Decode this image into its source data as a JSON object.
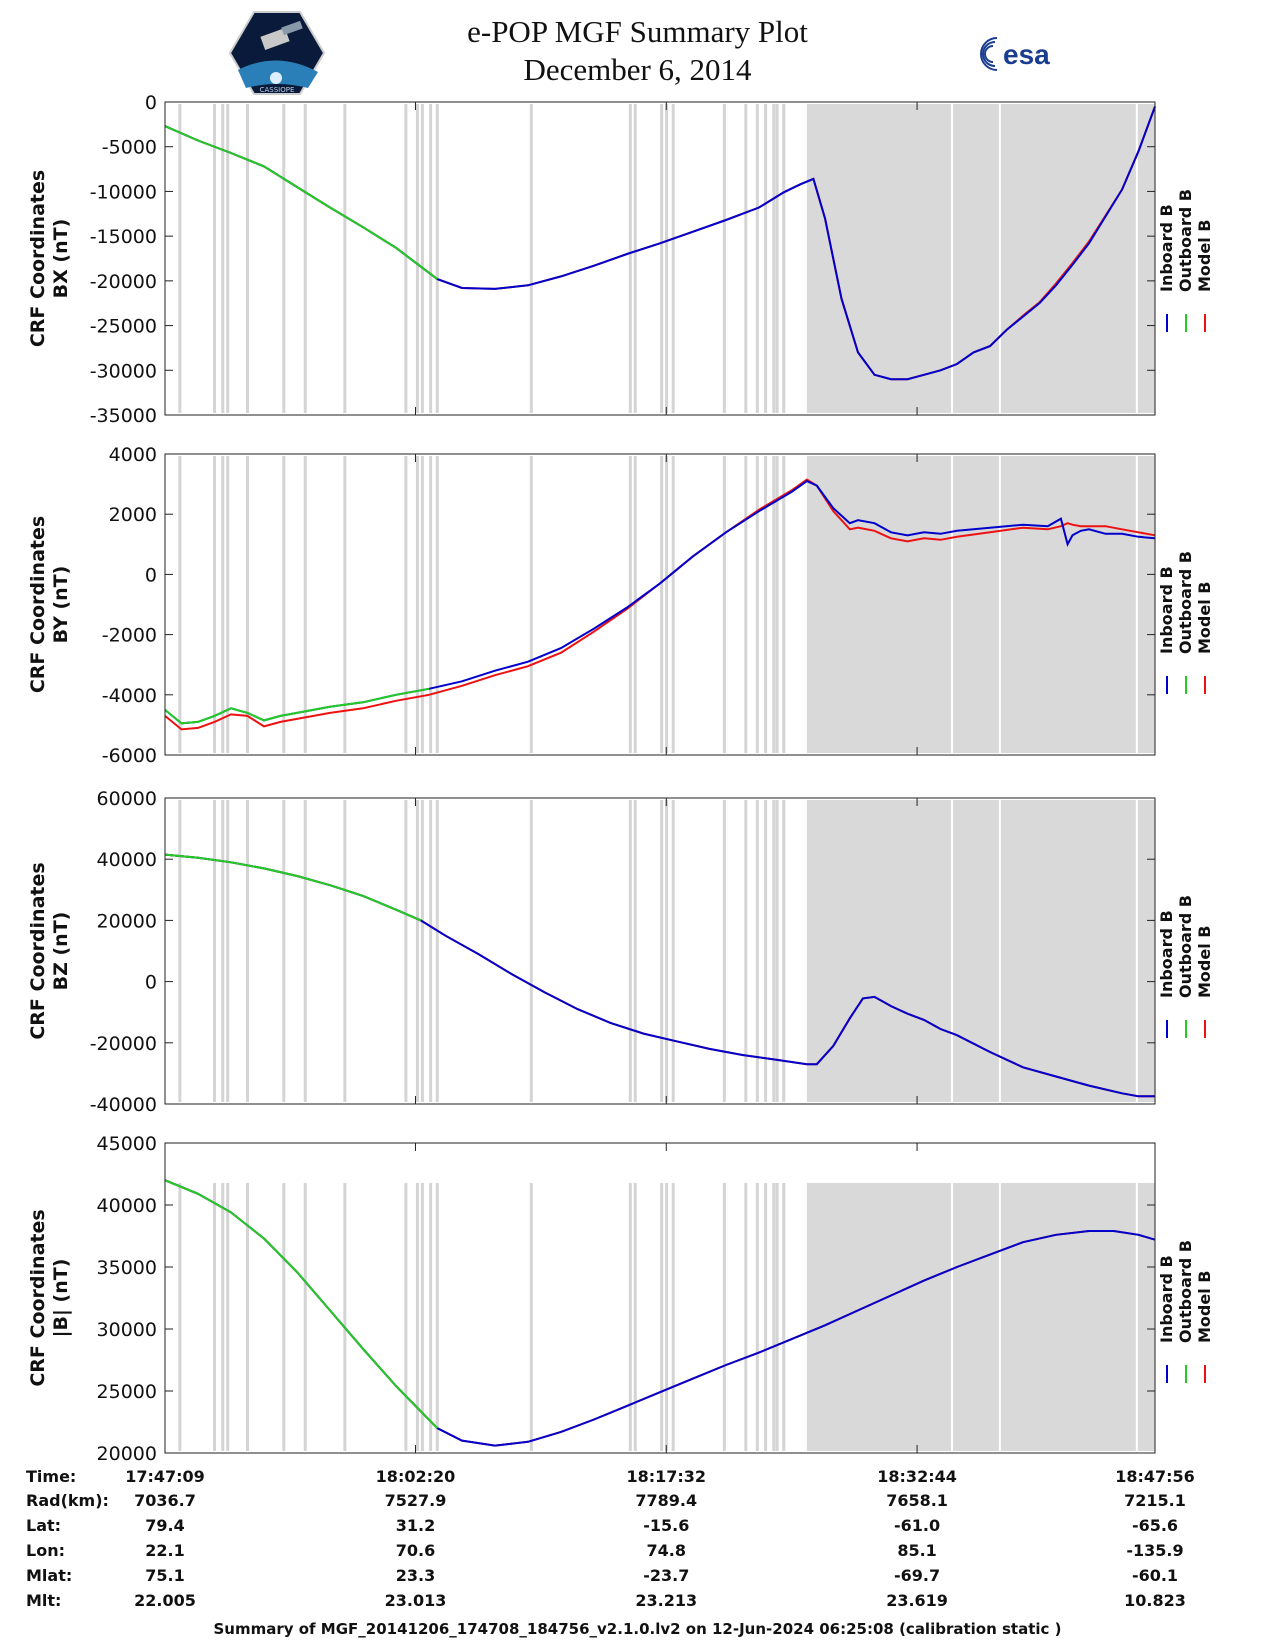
{
  "header": {
    "title_line1": "e-POP MGF Summary Plot",
    "title_line2": "December 6, 2014",
    "mission_logo_text": "CASSIOPE",
    "esa_logo_text": "esa"
  },
  "footer": {
    "text": "Summary of MGF_20141206_174708_184756_v2.1.0.lv2 on 12-Jun-2024 06:25:08 (calibration static )"
  },
  "colors": {
    "inboard": "#0000cc",
    "outboard": "#22cc22",
    "model": "#ee1111",
    "shade": "#d9d9d9"
  },
  "chart_data": {
    "type": "line",
    "x_unit": "minutes since 17:47:09",
    "x_range": [
      0,
      60
    ],
    "legend": [
      "Inboard B",
      "Outboard B",
      "Model B"
    ],
    "legend_placement": "right",
    "shaded_interval": {
      "start": 38.9,
      "end": 60
    },
    "gap_lines": [
      0.9,
      3.0,
      3.5,
      3.8,
      5.0,
      7.2,
      8.5,
      10.9,
      14.6,
      15.3,
      15.6,
      16.1,
      16.5,
      22.2,
      28.2,
      28.5,
      30.1,
      30.4,
      30.8,
      33.9,
      35.2,
      35.9,
      36.4,
      36.9,
      37.1,
      37.5,
      47.7,
      50.6,
      58.9
    ],
    "time_ticks": {
      "labels": [
        "17:47:09",
        "18:02:20",
        "18:17:32",
        "18:32:44",
        "18:47:56"
      ],
      "values": [
        0,
        15.18,
        30.38,
        45.58,
        60
      ]
    },
    "panels": [
      {
        "id": "bx",
        "ylabel1": "CRF Coordinates",
        "ylabel2": "BX (nT)",
        "ylim": [
          -35000,
          0
        ],
        "ytick_labels": [
          "0",
          "-5000",
          "-10000",
          "-15000",
          "-20000",
          "-25000",
          "-30000",
          "-35000"
        ],
        "ytick_values": [
          0,
          -5000,
          -10000,
          -15000,
          -20000,
          -25000,
          -30000,
          -35000
        ],
        "outboard_end": 16.5,
        "series": {
          "x": [
            0,
            2,
            4,
            6,
            8,
            10,
            12,
            14,
            16.5,
            18,
            20,
            22,
            24,
            26,
            28,
            30,
            32,
            34,
            36,
            37.5,
            38.5,
            39.3,
            40,
            41,
            42,
            43,
            44,
            45,
            46,
            47,
            48,
            49,
            50,
            51,
            52,
            53,
            54,
            55,
            56,
            57,
            58,
            59,
            60
          ],
          "inboard": [
            -2700,
            -4300,
            -5700,
            -7200,
            -9500,
            -11800,
            -14000,
            -16300,
            -19800,
            -20800,
            -20900,
            -20500,
            -19500,
            -18300,
            -17000,
            -15800,
            -14500,
            -13200,
            -11800,
            -10100,
            -9200,
            -8600,
            -13000,
            -22000,
            -28000,
            -30500,
            -31000,
            -31000,
            -30500,
            -30000,
            -29300,
            -28000,
            -27300,
            -25500,
            -24000,
            -22500,
            -20500,
            -18200,
            -15800,
            -12800,
            -9800,
            -5500,
            -500
          ],
          "model": [
            -2700,
            -4300,
            -5700,
            -7200,
            -9500,
            -11800,
            -14000,
            -16300,
            -19800,
            -20800,
            -20900,
            -20500,
            -19500,
            -18300,
            -17000,
            -15800,
            -14500,
            -13200,
            -11800,
            -10100,
            -9200,
            -8600,
            -13000,
            -22000,
            -28000,
            -30500,
            -31000,
            -31000,
            -30500,
            -30000,
            -29300,
            -28000,
            -27300,
            -25500,
            -23900,
            -22400,
            -20300,
            -18000,
            -15600,
            -12700,
            -9800,
            -5500,
            -500
          ]
        }
      },
      {
        "id": "by",
        "ylabel1": "CRF Coordinates",
        "ylabel2": "BY (nT)",
        "ylim": [
          -6000,
          4000
        ],
        "ytick_labels": [
          "4000",
          "2000",
          "0",
          "-2000",
          "-4000",
          "-6000"
        ],
        "ytick_values": [
          4000,
          2000,
          0,
          -2000,
          -4000,
          -6000
        ],
        "outboard_end": 16.5,
        "series": {
          "x": [
            0,
            1,
            2,
            3,
            4,
            5,
            6,
            7,
            8,
            10,
            12,
            14,
            16,
            18,
            20,
            22,
            24,
            26,
            28,
            30,
            32,
            34,
            36,
            38,
            38.9,
            39.5,
            40.5,
            41.5,
            42,
            43,
            44,
            45,
            46,
            47,
            48,
            50,
            52,
            53.5,
            54.3,
            54.7,
            55,
            55.5,
            56,
            57,
            58,
            59,
            60
          ],
          "inboard": [
            -4500,
            -4950,
            -4900,
            -4700,
            -4450,
            -4600,
            -4850,
            -4700,
            -4600,
            -4400,
            -4250,
            -4000,
            -3800,
            -3550,
            -3200,
            -2900,
            -2450,
            -1800,
            -1100,
            -300,
            600,
            1400,
            2100,
            2750,
            3100,
            2950,
            2200,
            1700,
            1800,
            1700,
            1400,
            1300,
            1400,
            1350,
            1450,
            1550,
            1650,
            1600,
            1850,
            1000,
            1300,
            1450,
            1500,
            1350,
            1350,
            1250,
            1200
          ],
          "model": [
            -4700,
            -5150,
            -5100,
            -4900,
            -4650,
            -4700,
            -5050,
            -4900,
            -4800,
            -4600,
            -4450,
            -4200,
            -4000,
            -3700,
            -3350,
            -3050,
            -2600,
            -1900,
            -1150,
            -300,
            600,
            1400,
            2150,
            2800,
            3150,
            2950,
            2100,
            1500,
            1550,
            1450,
            1200,
            1100,
            1200,
            1150,
            1250,
            1400,
            1550,
            1500,
            1600,
            1700,
            1650,
            1600,
            1600,
            1600,
            1500,
            1400,
            1300
          ]
        }
      },
      {
        "id": "bz",
        "ylabel1": "CRF Coordinates",
        "ylabel2": "BZ (nT)",
        "ylim": [
          -40000,
          60000
        ],
        "ytick_labels": [
          "60000",
          "40000",
          "20000",
          "0",
          "-20000",
          "-40000"
        ],
        "ytick_values": [
          60000,
          40000,
          20000,
          0,
          -20000,
          -40000
        ],
        "outboard_end": 15.5,
        "series": {
          "x": [
            0,
            2,
            4,
            6,
            8,
            10,
            12,
            14,
            15.5,
            17,
            19,
            21,
            23,
            25,
            27,
            29,
            31,
            33,
            35,
            37,
            38.9,
            39.5,
            40.5,
            41.5,
            42.3,
            43,
            44,
            45,
            46,
            47,
            48,
            50,
            52,
            54,
            56,
            58,
            59,
            60
          ],
          "inboard": [
            41500,
            40500,
            39000,
            37000,
            34500,
            31500,
            28000,
            23500,
            20000,
            15000,
            9000,
            2500,
            -3500,
            -9000,
            -13500,
            -17000,
            -19500,
            -22000,
            -24000,
            -25500,
            -27000,
            -27000,
            -21000,
            -12000,
            -5500,
            -5000,
            -8000,
            -10500,
            -12500,
            -15500,
            -17500,
            -23000,
            -28000,
            -31000,
            -34000,
            -36500,
            -37500,
            -37500
          ],
          "model": [
            41500,
            40500,
            39000,
            37000,
            34500,
            31500,
            28000,
            23500,
            20000,
            15000,
            9000,
            2500,
            -3500,
            -9000,
            -13500,
            -17000,
            -19500,
            -22000,
            -24000,
            -25500,
            -27000,
            -27000,
            -21000,
            -12000,
            -5500,
            -5000,
            -8000,
            -10500,
            -12500,
            -15500,
            -17500,
            -23000,
            -28000,
            -31000,
            -34000,
            -36500,
            -37500,
            -37500
          ]
        }
      },
      {
        "id": "bmag",
        "ylabel1": "CRF Coordinates",
        "ylabel2": "|B| (nT)",
        "ylim": [
          20000,
          45000
        ],
        "ytick_labels": [
          "45000",
          "40000",
          "35000",
          "30000",
          "25000",
          "20000"
        ],
        "ytick_values": [
          45000,
          40000,
          35000,
          30000,
          25000,
          20000
        ],
        "outboard_end": 16.5,
        "series": {
          "x": [
            0,
            2,
            4,
            6,
            8,
            10,
            12,
            14,
            16.5,
            18,
            20,
            22,
            24,
            26,
            28,
            30,
            32,
            34,
            36,
            38,
            40,
            42,
            44,
            46,
            48,
            50,
            52,
            54,
            56,
            57.5,
            59,
            60
          ],
          "inboard": [
            42000,
            40900,
            39400,
            37300,
            34600,
            31500,
            28400,
            25400,
            22000,
            21000,
            20600,
            20900,
            21700,
            22700,
            23800,
            24900,
            26000,
            27100,
            28100,
            29200,
            30300,
            31500,
            32700,
            33900,
            35000,
            36000,
            37000,
            37600,
            37900,
            37900,
            37600,
            37200
          ],
          "model": [
            42000,
            40900,
            39400,
            37300,
            34600,
            31500,
            28400,
            25400,
            22000,
            21000,
            20600,
            20900,
            21700,
            22700,
            23800,
            24900,
            26000,
            27100,
            28100,
            29200,
            30300,
            31500,
            32700,
            33900,
            35000,
            36000,
            37000,
            37600,
            37900,
            37900,
            37600,
            37200
          ]
        }
      }
    ]
  },
  "ephemeris": {
    "row_labels": [
      "Time:",
      "Rad(km):",
      "Lat:",
      "Lon:",
      "Mlat:",
      "Mlt:"
    ],
    "columns": [
      [
        "17:47:09",
        "7036.7",
        "79.4",
        "22.1",
        "75.1",
        "22.005"
      ],
      [
        "18:02:20",
        "7527.9",
        "31.2",
        "70.6",
        "23.3",
        "23.013"
      ],
      [
        "18:17:32",
        "7789.4",
        "-15.6",
        "74.8",
        "-23.7",
        "23.213"
      ],
      [
        "18:32:44",
        "7658.1",
        "-61.0",
        "85.1",
        "-69.7",
        "23.619"
      ],
      [
        "18:47:56",
        "7215.1",
        "-65.6",
        "-135.9",
        "-60.1",
        "10.823"
      ]
    ]
  }
}
